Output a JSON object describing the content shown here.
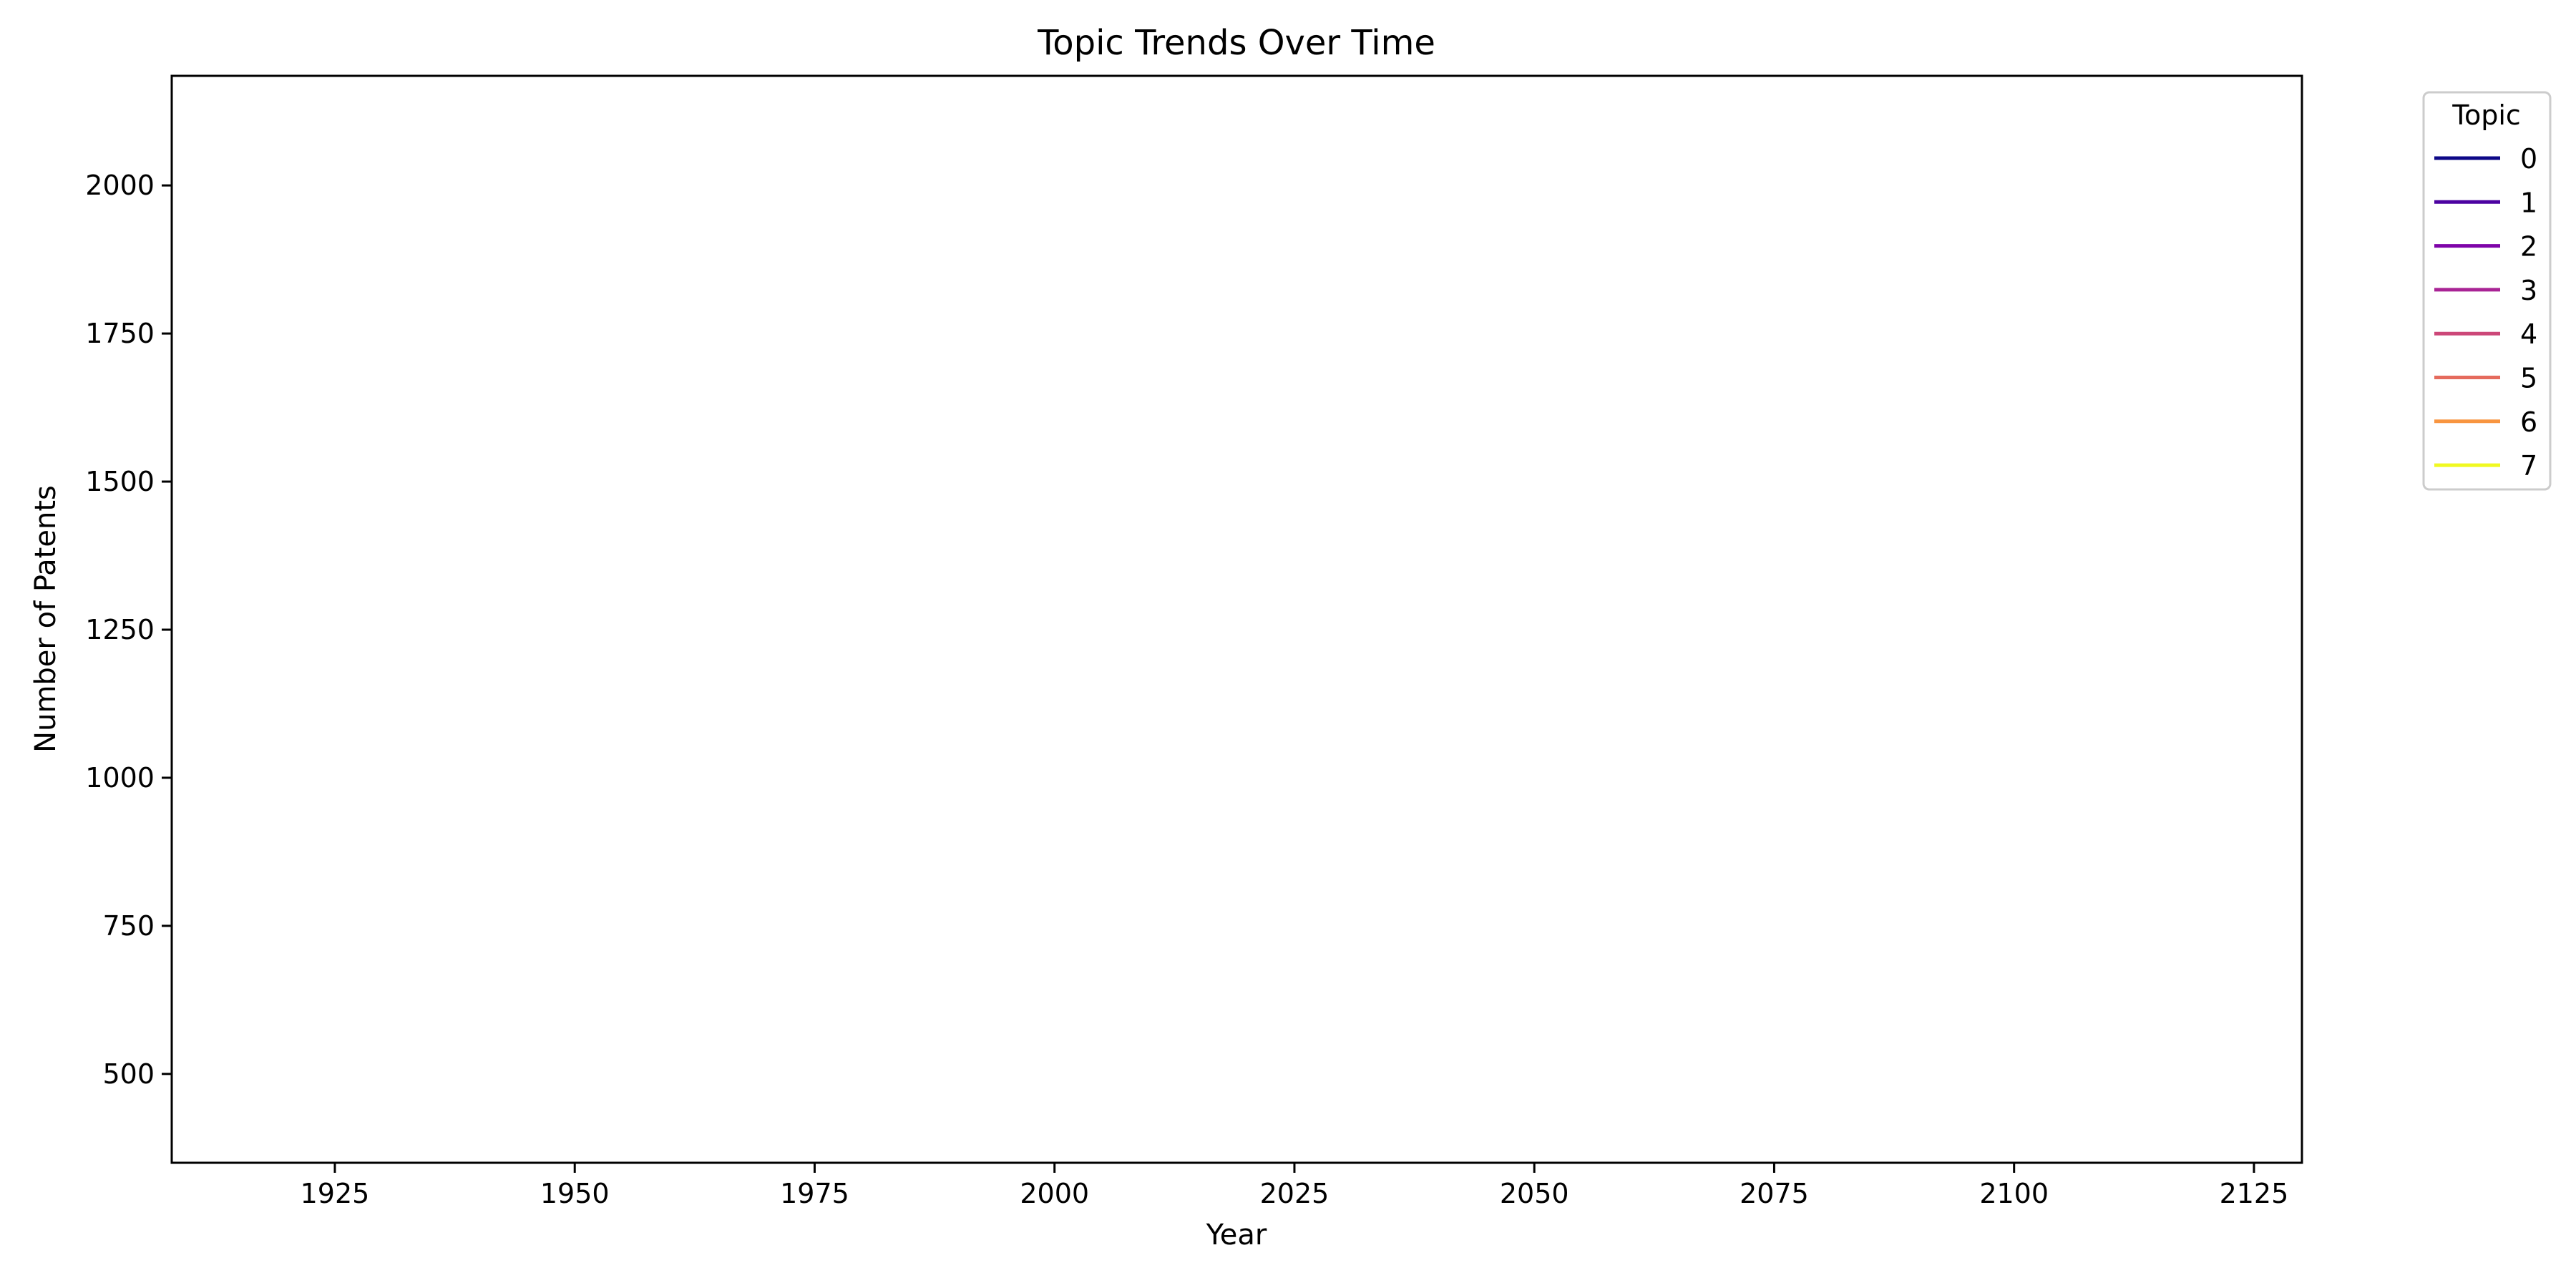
{
  "chart_data": {
    "type": "line",
    "title": "Topic Trends Over Time",
    "xlabel": "Year",
    "ylabel": "Number of Patents",
    "xlim": [
      1908,
      2130
    ],
    "ylim": [
      350,
      2185
    ],
    "xticks": [
      "1925",
      "1950",
      "1975",
      "2000",
      "2025",
      "2050",
      "2075",
      "2100",
      "2125"
    ],
    "yticks": [
      "500",
      "750",
      "1000",
      "1250",
      "1500",
      "1750",
      "2000"
    ],
    "grid": false,
    "legend": {
      "title": "Topic",
      "placement": "outside-top-right",
      "entries": [
        {
          "label": "0",
          "color": "#0d0887"
        },
        {
          "label": "1",
          "color": "#4c02a1"
        },
        {
          "label": "2",
          "color": "#7e03a8"
        },
        {
          "label": "3",
          "color": "#a92395"
        },
        {
          "label": "4",
          "color": "#cc4778"
        },
        {
          "label": "5",
          "color": "#e56b5d"
        },
        {
          "label": "6",
          "color": "#f89540"
        },
        {
          "label": "7",
          "color": "#f0f921"
        }
      ]
    },
    "series": []
  }
}
